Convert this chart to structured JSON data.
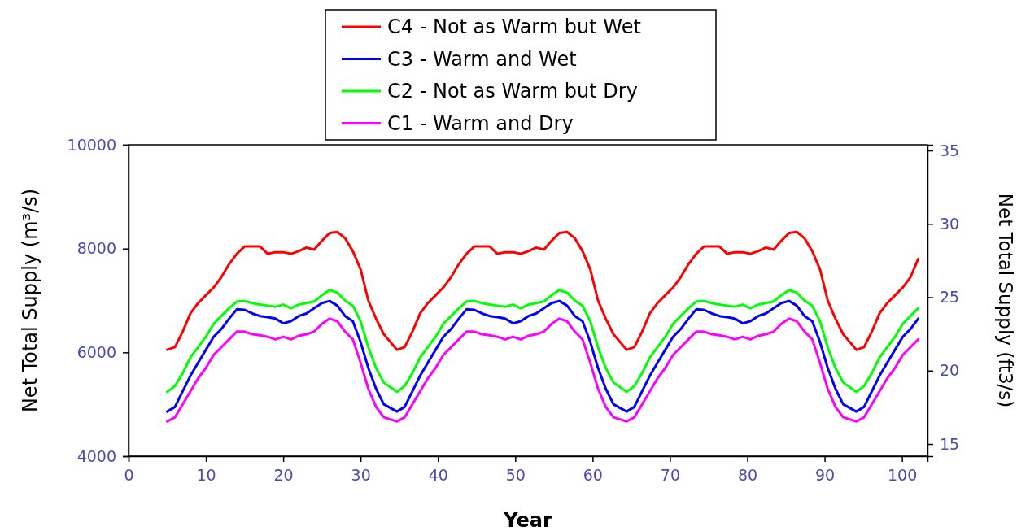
{
  "chart_data": {
    "type": "line",
    "xlabel": "Year",
    "ylabel": "Net Total Supply (m³/s)",
    "y2label": "Net Total Supply (ft3/s)",
    "xlim": [
      0,
      103.3
    ],
    "xticks": [
      0,
      10,
      20,
      30,
      40,
      50,
      60,
      70,
      80,
      90,
      100
    ],
    "ylim": [
      4000,
      10000
    ],
    "yticks": [
      4000,
      6000,
      8000,
      10000
    ],
    "y2lim": [
      14.17,
      35.39
    ],
    "y2ticks": [
      15,
      20,
      25,
      30,
      35
    ],
    "legend": "top",
    "x": [
      5,
      6,
      7,
      8,
      9,
      10,
      11,
      12,
      13,
      14,
      15,
      16,
      17,
      18,
      19,
      20,
      21,
      22,
      23,
      24,
      25,
      26,
      27,
      28,
      29,
      30,
      31,
      32,
      33,
      34.7,
      35.7,
      36.7,
      37.7,
      38.7,
      39.7,
      40.7,
      41.7,
      42.7,
      43.7,
      44.7,
      45.7,
      46.7,
      47.7,
      48.7,
      49.7,
      50.7,
      51.7,
      52.7,
      53.7,
      54.7,
      55.7,
      56.7,
      57.7,
      58.7,
      59.7,
      60.7,
      61.7,
      62.7,
      64.4,
      65.4,
      66.4,
      67.4,
      68.4,
      69.4,
      70.4,
      71.4,
      72.4,
      73.4,
      74.4,
      75.4,
      76.4,
      77.4,
      78.4,
      79.4,
      80.4,
      81.4,
      82.4,
      83.4,
      84.4,
      85.4,
      86.4,
      87.4,
      88.4,
      89.4,
      90.4,
      91.4,
      92.4,
      94.1,
      95.1,
      96.1,
      97.1,
      98.1,
      99.1,
      100.1,
      101.1,
      102.1
    ],
    "series": [
      {
        "name": "C4 - Not as Warm but Wet",
        "color": "#ff0000",
        "values": [
          6050,
          6100,
          6400,
          6750,
          6950,
          7100,
          7250,
          7450,
          7700,
          7900,
          8040,
          8040,
          8040,
          7900,
          7930,
          7930,
          7900,
          7950,
          8020,
          7980,
          8150,
          8300,
          8320,
          8200,
          7950,
          7600,
          7000,
          6650,
          6350,
          6050,
          6100,
          6400,
          6750,
          6950,
          7100,
          7250,
          7450,
          7700,
          7900,
          8040,
          8040,
          8040,
          7900,
          7930,
          7930,
          7900,
          7950,
          8020,
          7980,
          8150,
          8300,
          8320,
          8200,
          7950,
          7600,
          7000,
          6650,
          6350,
          6050,
          6100,
          6400,
          6750,
          6950,
          7100,
          7250,
          7450,
          7700,
          7900,
          8040,
          8040,
          8040,
          7900,
          7930,
          7930,
          7900,
          7950,
          8020,
          7980,
          8150,
          8300,
          8320,
          8200,
          7950,
          7600,
          7000,
          6650,
          6350,
          6050,
          6100,
          6400,
          6750,
          6950,
          7100,
          7250,
          7450,
          7800
        ]
      },
      {
        "name": "C3 - Warm and Wet",
        "color": "#0000ff",
        "values": [
          4860,
          4950,
          5250,
          5550,
          5800,
          6050,
          6300,
          6450,
          6650,
          6830,
          6820,
          6750,
          6700,
          6680,
          6650,
          6560,
          6600,
          6700,
          6750,
          6850,
          6950,
          6990,
          6900,
          6700,
          6600,
          6200,
          5700,
          5300,
          5000,
          4860,
          4950,
          5250,
          5550,
          5800,
          6050,
          6300,
          6450,
          6650,
          6830,
          6820,
          6750,
          6700,
          6680,
          6650,
          6560,
          6600,
          6700,
          6750,
          6850,
          6950,
          6990,
          6900,
          6700,
          6600,
          6200,
          5700,
          5300,
          5000,
          4860,
          4950,
          5250,
          5550,
          5800,
          6050,
          6300,
          6450,
          6650,
          6830,
          6820,
          6750,
          6700,
          6680,
          6650,
          6560,
          6600,
          6700,
          6750,
          6850,
          6950,
          6990,
          6900,
          6700,
          6600,
          6200,
          5700,
          5300,
          5000,
          4860,
          4950,
          5250,
          5550,
          5800,
          6050,
          6300,
          6450,
          6650
        ]
      },
      {
        "name": "C2 - Not as Warm but Dry",
        "color": "#00ff00",
        "values": [
          5240,
          5350,
          5600,
          5900,
          6100,
          6300,
          6550,
          6700,
          6850,
          6980,
          6990,
          6950,
          6920,
          6900,
          6880,
          6920,
          6850,
          6920,
          6950,
          6980,
          7100,
          7200,
          7150,
          7000,
          6900,
          6600,
          6100,
          5700,
          5420,
          5240,
          5350,
          5600,
          5900,
          6100,
          6300,
          6550,
          6700,
          6850,
          6980,
          6990,
          6950,
          6920,
          6900,
          6880,
          6920,
          6850,
          6920,
          6950,
          6980,
          7100,
          7200,
          7150,
          7000,
          6900,
          6600,
          6100,
          5700,
          5420,
          5240,
          5350,
          5600,
          5900,
          6100,
          6300,
          6550,
          6700,
          6850,
          6980,
          6990,
          6950,
          6920,
          6900,
          6880,
          6920,
          6850,
          6920,
          6950,
          6980,
          7100,
          7200,
          7150,
          7000,
          6900,
          6600,
          6100,
          5700,
          5420,
          5240,
          5350,
          5600,
          5900,
          6100,
          6300,
          6550,
          6700,
          6850
        ]
      },
      {
        "name": "C1 - Warm and Dry",
        "color": "#ff00ff",
        "values": [
          4670,
          4750,
          5000,
          5250,
          5500,
          5700,
          5950,
          6100,
          6250,
          6400,
          6400,
          6350,
          6330,
          6300,
          6250,
          6300,
          6250,
          6320,
          6350,
          6400,
          6550,
          6650,
          6600,
          6400,
          6250,
          5800,
          5300,
          4950,
          4750,
          4670,
          4750,
          5000,
          5250,
          5500,
          5700,
          5950,
          6100,
          6250,
          6400,
          6400,
          6350,
          6330,
          6300,
          6250,
          6300,
          6250,
          6320,
          6350,
          6400,
          6550,
          6650,
          6600,
          6400,
          6250,
          5800,
          5300,
          4950,
          4750,
          4670,
          4750,
          5000,
          5250,
          5500,
          5700,
          5950,
          6100,
          6250,
          6400,
          6400,
          6350,
          6330,
          6300,
          6250,
          6300,
          6250,
          6320,
          6350,
          6400,
          6550,
          6650,
          6600,
          6400,
          6250,
          5800,
          5300,
          4950,
          4750,
          4670,
          4750,
          5000,
          5250,
          5500,
          5700,
          5950,
          6100,
          6250
        ]
      }
    ]
  }
}
